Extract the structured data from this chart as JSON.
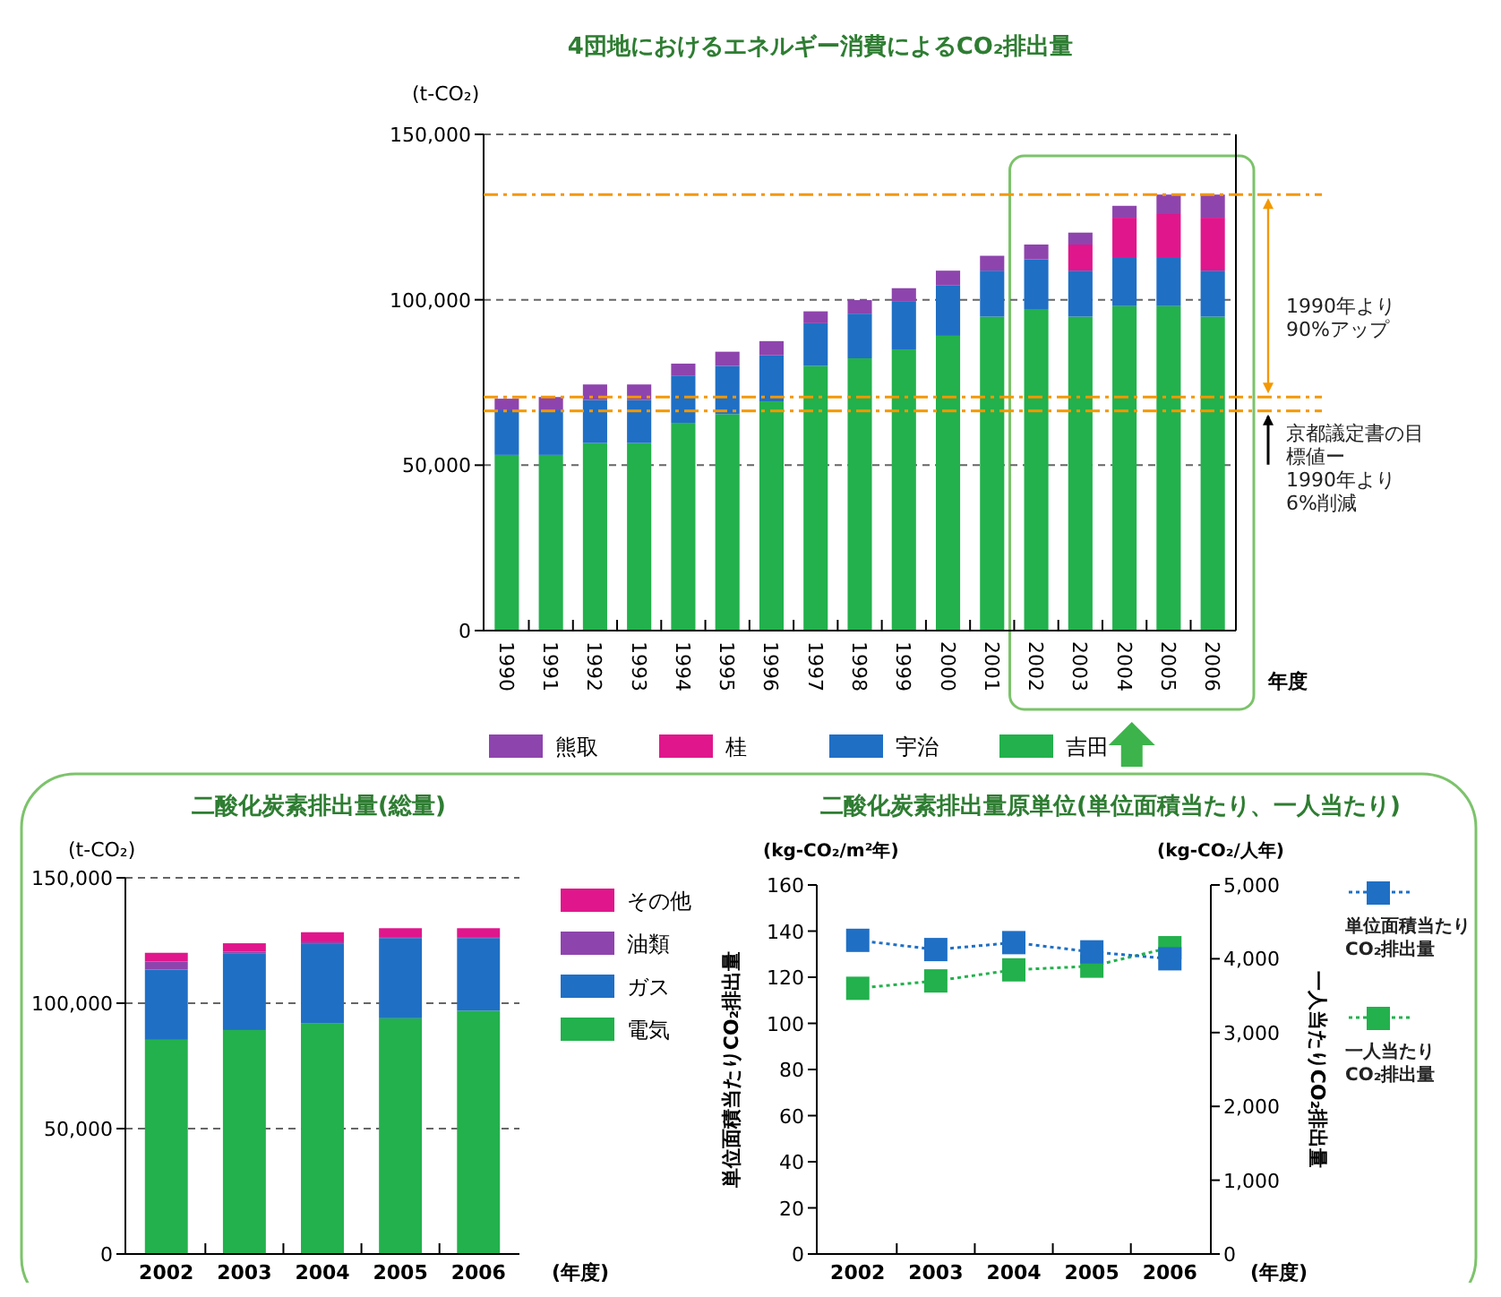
{
  "chart_data": [
    {
      "type": "bar",
      "title": "4団地におけるエネルギー消費によるCO₂排出量",
      "ylabel": "(t-CO₂)",
      "xlabel": "年度",
      "stacked": true,
      "grid": "y",
      "legend": "bottom",
      "categories": [
        "1990",
        "1991",
        "1992",
        "1993",
        "1994",
        "1995",
        "1996",
        "1997",
        "1998",
        "1999",
        "2000",
        "2001",
        "2002",
        "2003",
        "2004",
        "2005",
        "2006"
      ],
      "ylim": [
        0,
        150000
      ],
      "yticks": [
        {
          "value": 0,
          "label": "0"
        },
        {
          "value": 50000,
          "label": "50,000"
        },
        {
          "value": 100000,
          "label": "100,000"
        },
        {
          "value": 150000,
          "label": "150,000"
        }
      ],
      "series": [
        {
          "name": "吉田",
          "color": "#22b14c",
          "values": [
            53100,
            53100,
            56700,
            56700,
            62800,
            65400,
            69300,
            80000,
            82300,
            85000,
            89100,
            94900,
            97200,
            94900,
            98100,
            98100,
            94900
          ]
        },
        {
          "name": "宇治",
          "color": "#1f6fc5",
          "values": [
            13500,
            13500,
            13000,
            13000,
            14300,
            14600,
            13900,
            12900,
            13500,
            14400,
            15200,
            13900,
            15000,
            13900,
            14800,
            14800,
            13900
          ]
        },
        {
          "name": "桂",
          "color": "#e0168c",
          "values": [
            null,
            null,
            null,
            null,
            null,
            null,
            null,
            null,
            null,
            null,
            null,
            null,
            null,
            7900,
            11900,
            13000,
            16000
          ]
        },
        {
          "name": "熊取",
          "color": "#8e44ad",
          "values": [
            3500,
            4000,
            4700,
            4700,
            3600,
            4300,
            4300,
            3600,
            4100,
            4100,
            4500,
            4500,
            4500,
            3600,
            3600,
            5900,
            7000
          ]
        }
      ],
      "ref_lines": [
        {
          "axis": "y",
          "value": 131800,
          "label": null,
          "color": "#f39800",
          "line_style": "dashed"
        },
        {
          "axis": "y",
          "value": 70600,
          "label": "1990年より90%アップ",
          "color": "#f39800",
          "line_style": "dashed"
        },
        {
          "axis": "y",
          "value": 66400,
          "label": "京都議定書の目標値ー1990年より6%削減",
          "color": "#f39800",
          "line_style": "dashed"
        }
      ]
    },
    {
      "type": "bar",
      "title": "二酸化炭素排出量(総量)",
      "ylabel": "(t-CO₂)",
      "xlabel": "(年度)",
      "stacked": true,
      "grid": "y",
      "legend": "right",
      "categories": [
        "2002",
        "2003",
        "2004",
        "2005",
        "2006"
      ],
      "ylim": [
        0,
        150000
      ],
      "yticks": [
        {
          "value": 0,
          "label": "0"
        },
        {
          "value": 50000,
          "label": "50,000"
        },
        {
          "value": 100000,
          "label": "100,000"
        },
        {
          "value": 150000,
          "label": "150,000"
        }
      ],
      "series": [
        {
          "name": "電気",
          "color": "#22b14c",
          "values": [
            85400,
            89300,
            92100,
            94000,
            97000
          ]
        },
        {
          "name": "ガス",
          "color": "#1f6fc5",
          "values": [
            28000,
            30400,
            31500,
            32000,
            29000
          ]
        },
        {
          "name": "油類",
          "color": "#8e44ad",
          "values": [
            3200,
            900,
            700,
            400,
            400
          ]
        },
        {
          "name": "その他",
          "color": "#e0168c",
          "values": [
            3500,
            3300,
            4000,
            3500,
            3500
          ]
        }
      ]
    },
    {
      "type": "line",
      "title": "二酸化炭素排出量原単位(単位面積当たり、一人当たり)",
      "ylabel": "単位面積当たりCO₂排出量",
      "y2label": "一人当たりCO₂排出量",
      "xlabel": "(年度)",
      "legend": "right",
      "marker": "square",
      "line_style": "dotted",
      "annotations": [
        "(kg-CO₂/m²年)",
        "(kg-CO₂/人年)"
      ],
      "categories": [
        "2002",
        "2003",
        "2004",
        "2005",
        "2006"
      ],
      "ylim": [
        0,
        160
      ],
      "yticks": [
        0,
        20,
        40,
        60,
        80,
        100,
        120,
        140,
        160
      ],
      "y2lim": [
        0,
        5000
      ],
      "y2ticks": [
        {
          "value": 0,
          "label": "0"
        },
        {
          "value": 1000,
          "label": "1,000"
        },
        {
          "value": 2000,
          "label": "2,000"
        },
        {
          "value": 3000,
          "label": "3,000"
        },
        {
          "value": 4000,
          "label": "4,000"
        },
        {
          "value": 5000,
          "label": "5,000"
        }
      ],
      "series": [
        {
          "name": "単位面積当たり\nCO₂排出量",
          "color": "#1f6fc5",
          "values": [
            136,
            132,
            135,
            131,
            128
          ]
        },
        {
          "name": "一人当たり\nCO₂排出量",
          "color": "#22b14c",
          "axis": "y2",
          "values": [
            3600,
            3700,
            3850,
            3900,
            4150
          ]
        }
      ]
    }
  ]
}
